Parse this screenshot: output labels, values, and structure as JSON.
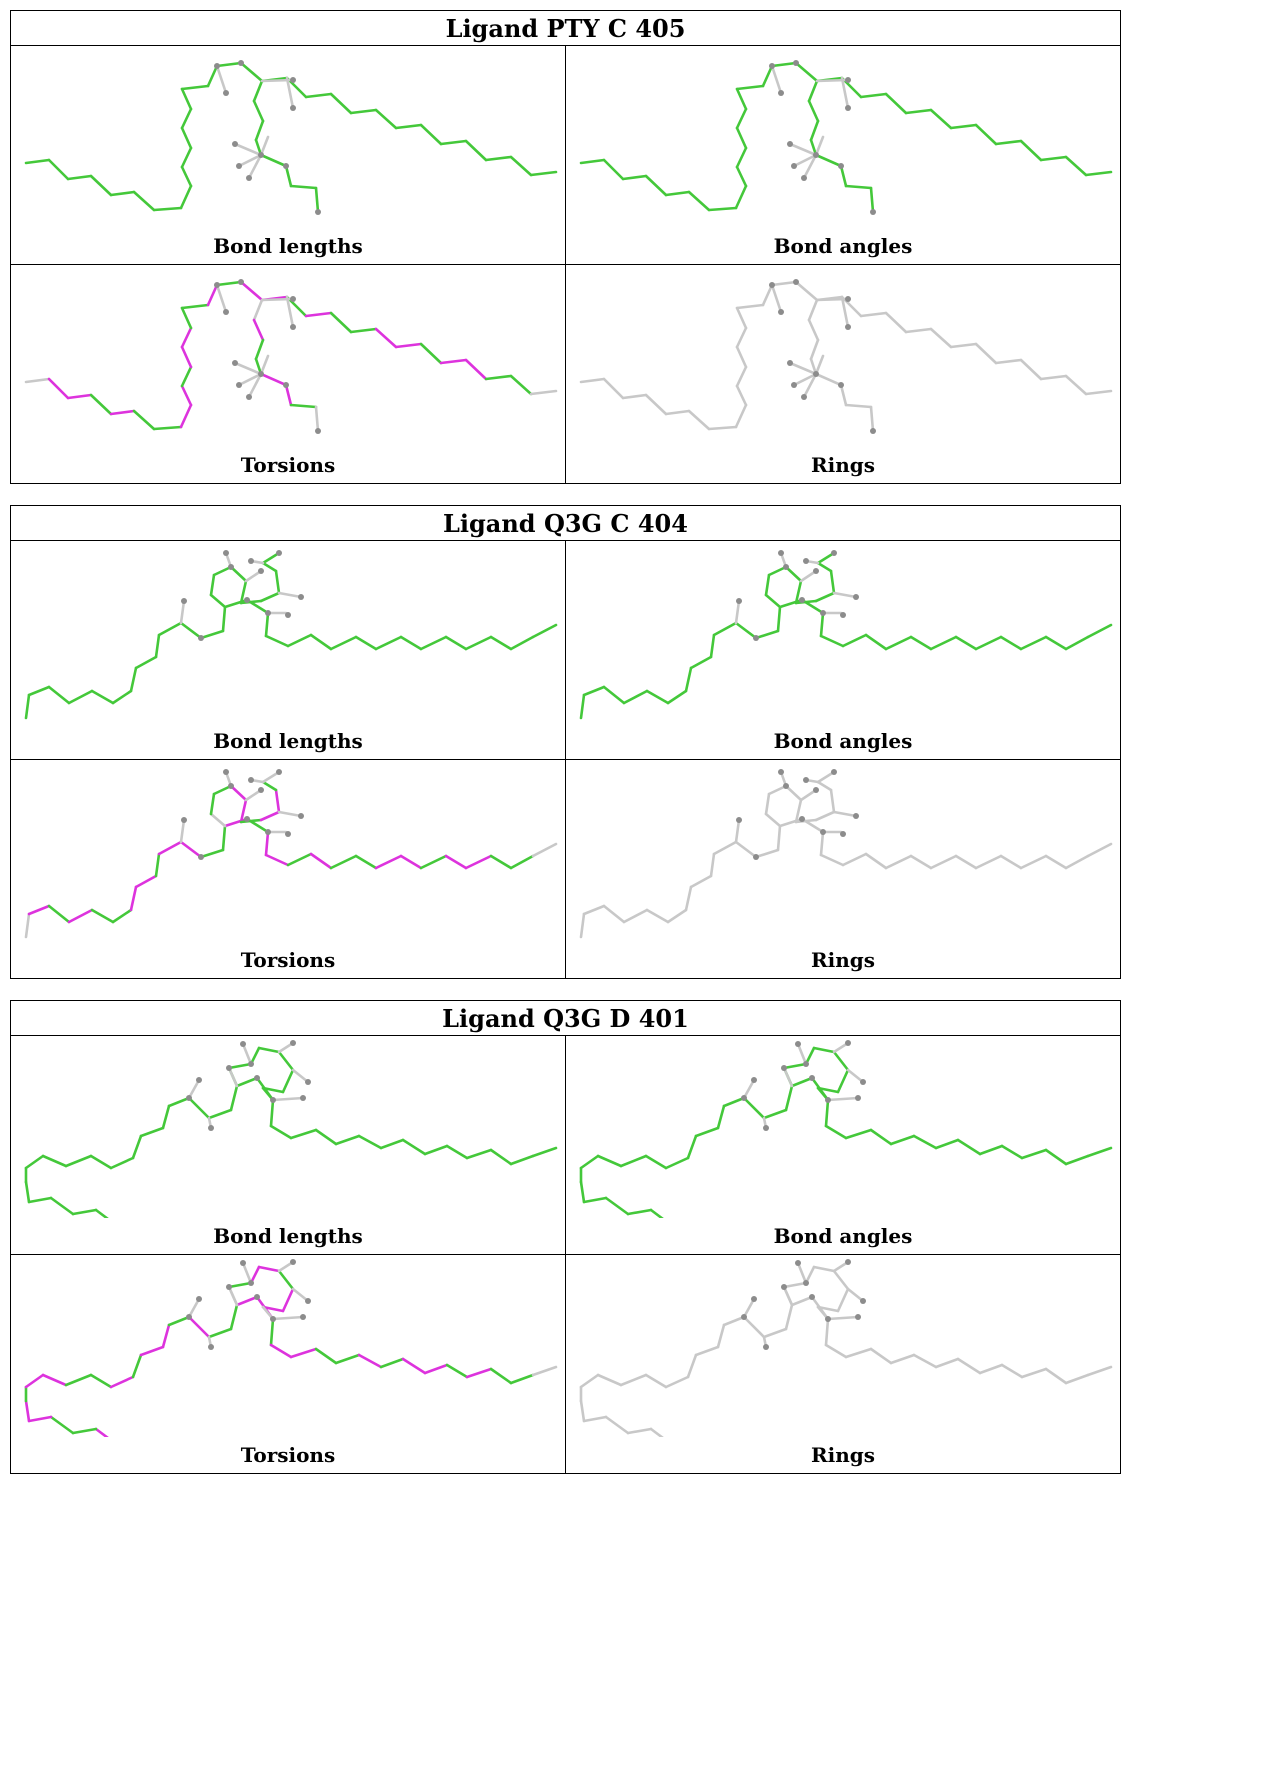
{
  "colors": {
    "ok": "#44c83a",
    "outlier": "#dd33dd",
    "unassessed": "#c8c8c8",
    "atom": "#8c8c8c"
  },
  "ligands": [
    {
      "title": "Ligand PTY C 405",
      "panels": [
        {
          "label": "Bond lengths",
          "mode": "ok"
        },
        {
          "label": "Bond angles",
          "mode": "ok"
        },
        {
          "label": "Torsions",
          "mode": "torsion"
        },
        {
          "label": "Rings",
          "mode": "grey"
        }
      ]
    },
    {
      "title": "Ligand Q3G C 404",
      "panels": [
        {
          "label": "Bond lengths",
          "mode": "ok"
        },
        {
          "label": "Bond angles",
          "mode": "ok"
        },
        {
          "label": "Torsions",
          "mode": "torsion"
        },
        {
          "label": "Rings",
          "mode": "grey"
        }
      ]
    },
    {
      "title": "Ligand Q3G D 401",
      "panels": [
        {
          "label": "Bond lengths",
          "mode": "ok"
        },
        {
          "label": "Bond angles",
          "mode": "ok"
        },
        {
          "label": "Torsions",
          "mode": "torsion"
        },
        {
          "label": "Rings",
          "mode": "grey"
        }
      ]
    }
  ]
}
